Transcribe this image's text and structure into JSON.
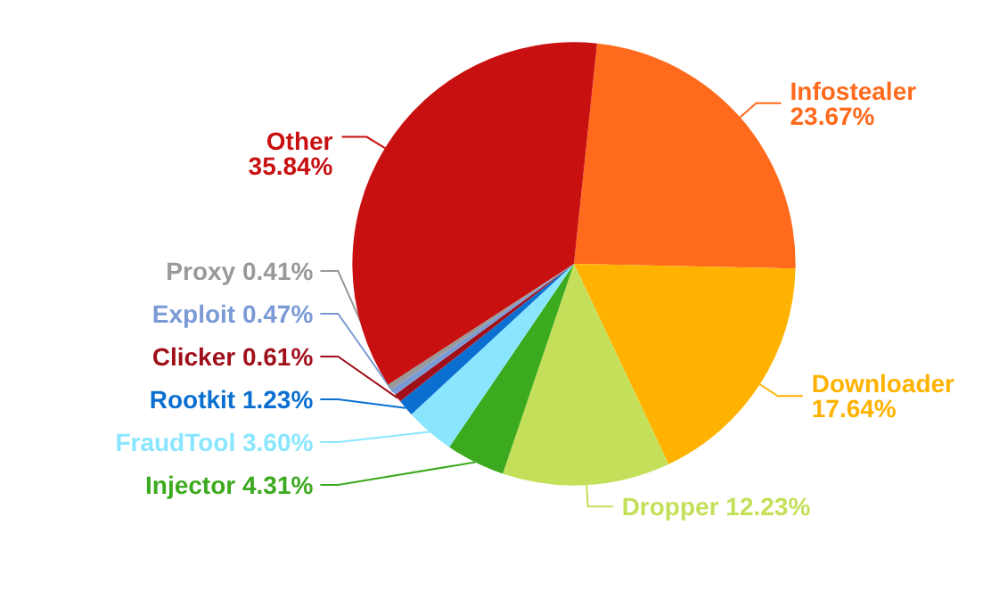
{
  "chart_data": {
    "type": "pie",
    "categories": [
      "Infostealer",
      "Downloader",
      "Dropper",
      "Injector",
      "FraudTool",
      "Rootkit",
      "Clicker",
      "Exploit",
      "Proxy",
      "Other"
    ],
    "values": [
      23.67,
      17.64,
      12.23,
      4.31,
      3.6,
      1.23,
      0.61,
      0.47,
      0.41,
      35.84
    ],
    "value_labels": [
      "23.67%",
      "17.64%",
      "12.23%",
      "4.31%",
      "3.60%",
      "1.23%",
      "0.61%",
      "0.47%",
      "0.41%",
      "35.84%"
    ],
    "colors": [
      "#ff6a1c",
      "#ffb300",
      "#c4e05a",
      "#3caa1e",
      "#8ae6ff",
      "#0a6fd0",
      "#a0101a",
      "#7a9ad6",
      "#999999",
      "#c81010"
    ]
  }
}
